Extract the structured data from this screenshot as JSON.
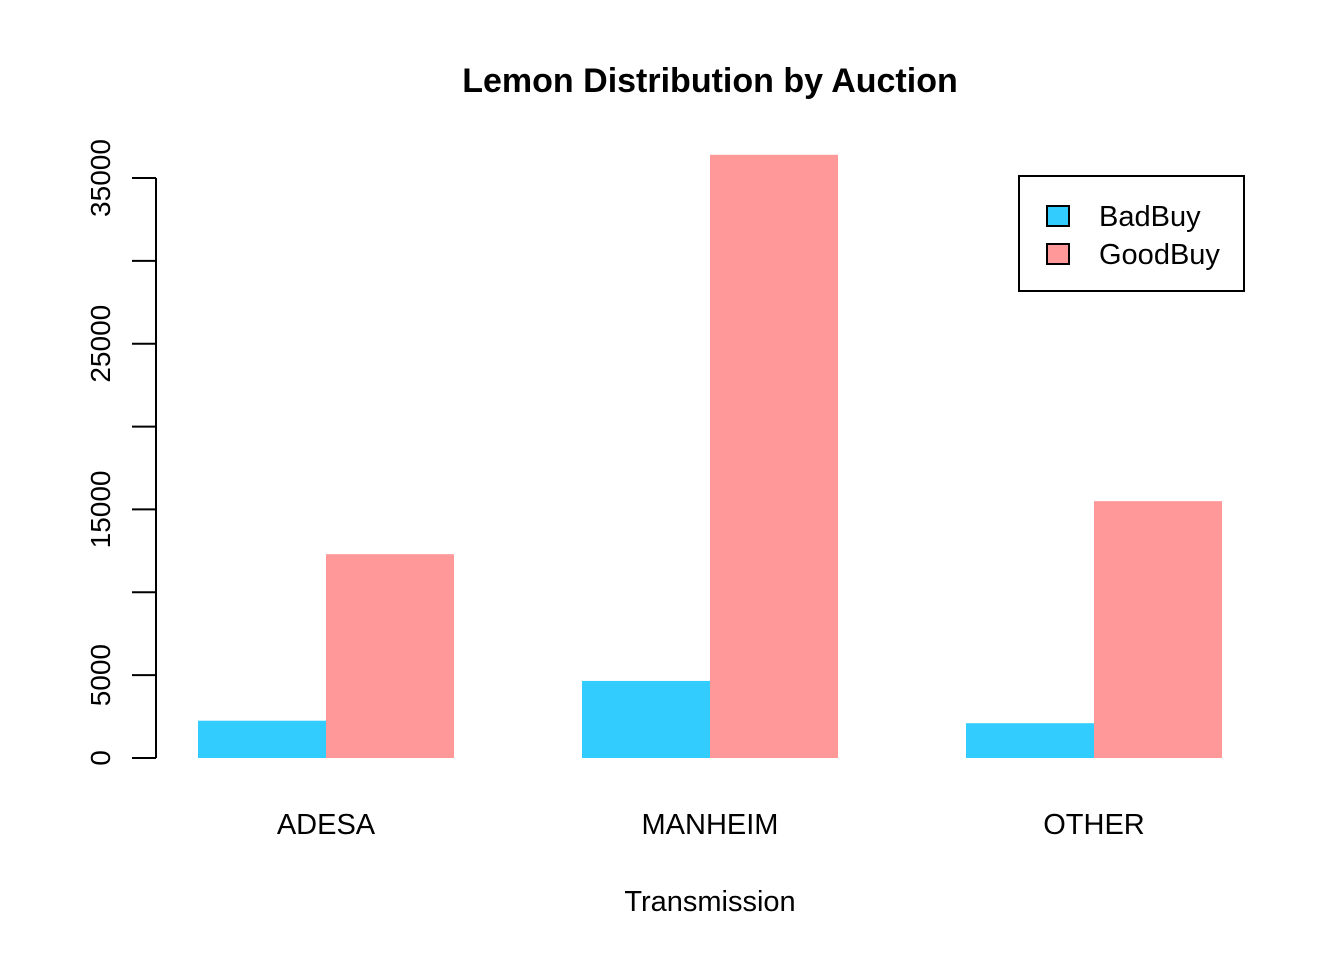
{
  "chart_data": {
    "type": "bar",
    "layout": "grouped",
    "title": "Lemon Distribution by Auction",
    "xlabel": "Transmission",
    "ylabel": "",
    "categories": [
      "ADESA",
      "MANHEIM",
      "OTHER"
    ],
    "series": [
      {
        "name": "BadBuy",
        "color": "#33CCFF",
        "values": [
          2250,
          4650,
          2100
        ]
      },
      {
        "name": "GoodBuy",
        "color": "#FF9999",
        "values": [
          12300,
          36400,
          15500
        ]
      }
    ],
    "ylim": [
      0,
      37000
    ],
    "yticks": [
      0,
      5000,
      10000,
      15000,
      20000,
      25000,
      30000,
      35000
    ],
    "ytick_labels": [
      "0",
      "5000",
      "",
      "15000",
      "",
      "25000",
      "",
      "35000"
    ],
    "legend_position": "top-right",
    "grid": false
  }
}
